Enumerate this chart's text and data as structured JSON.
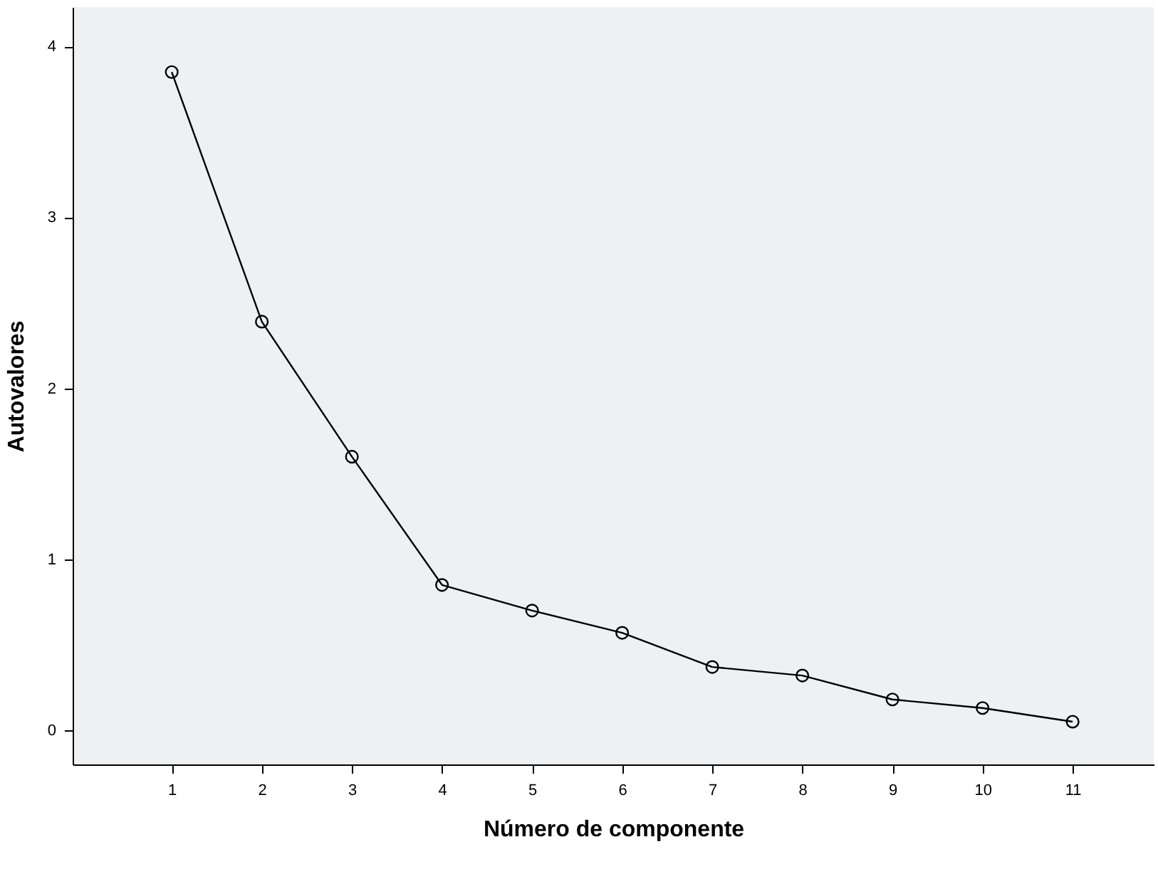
{
  "chart_data": {
    "type": "line",
    "xlabel": "Número de componente",
    "ylabel": "Autovalores",
    "x": [
      1,
      2,
      3,
      4,
      5,
      6,
      7,
      8,
      9,
      10,
      11
    ],
    "values": [
      3.85,
      2.39,
      1.6,
      0.85,
      0.7,
      0.57,
      0.37,
      0.32,
      0.18,
      0.13,
      0.05
    ],
    "color": "#000000",
    "marker": "circle",
    "line_style": "solid",
    "grid": false,
    "xlim": [
      -0.1,
      11.9
    ],
    "xticks": [
      1,
      2,
      3,
      4,
      5,
      6,
      7,
      8,
      9,
      10,
      11
    ],
    "ylim": [
      -0.2,
      4.23
    ],
    "yticks": [
      0,
      1,
      2,
      3,
      4
    ]
  }
}
